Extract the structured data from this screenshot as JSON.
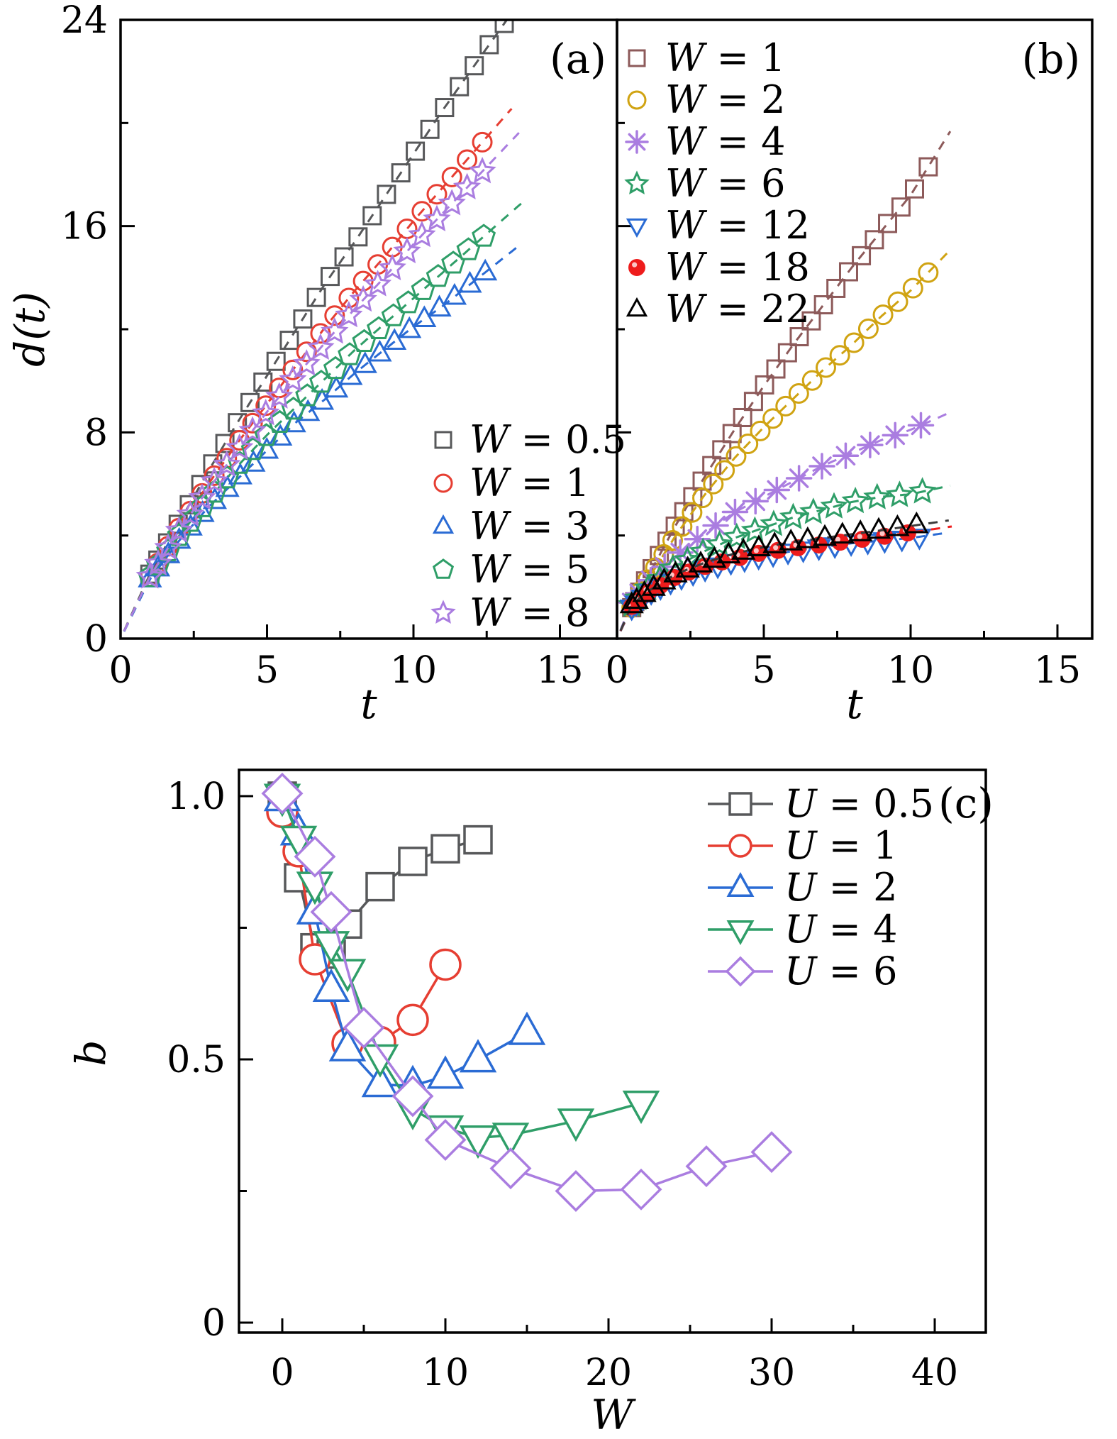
{
  "figure_title": "",
  "chart_data": [
    {
      "id": "a",
      "type": "scatter",
      "panel_label": "(a)",
      "xlabel": "t",
      "ylabel": "d(t)",
      "xlim": [
        0,
        16.9
      ],
      "ylim": [
        0,
        24
      ],
      "xticks_major": [
        0,
        5,
        10,
        15
      ],
      "xtick_labels": [
        "0",
        "5",
        "10",
        "15"
      ],
      "xticks_minor": [
        2.5,
        7.5,
        12.5
      ],
      "yticks_major": [
        0,
        8,
        16,
        24
      ],
      "ytick_labels": [
        "0",
        "8",
        "16",
        "24"
      ],
      "yticks_minor": [
        4,
        12,
        20
      ],
      "grid": false,
      "legend_position": "lower-right-inside",
      "series": [
        {
          "label": "W = 0.5",
          "color": "#57585a",
          "marker": "square",
          "anchors": [
            [
              1,
              2.5
            ],
            [
              2,
              4.5
            ],
            [
              3,
              6.5
            ],
            [
              4,
              8.4
            ],
            [
              5,
              10.2
            ],
            [
              6,
              12.0
            ],
            [
              7,
              13.8
            ],
            [
              8,
              15.4
            ],
            [
              9,
              17.1
            ],
            [
              10,
              18.8
            ],
            [
              11,
              20.5
            ],
            [
              12,
              22.1
            ],
            [
              13,
              23.7
            ]
          ],
          "markers": {
            "t0": 1.0,
            "t1": 13.1,
            "n": 28,
            "exp": 1.15
          },
          "dash_end": 13.6
        },
        {
          "label": "W = 1",
          "color": "#e63e32",
          "marker": "circle",
          "anchors": [
            [
              1,
              2.4
            ],
            [
              2,
              4.3
            ],
            [
              3,
              6.0
            ],
            [
              4,
              7.6
            ],
            [
              5,
              9.1
            ],
            [
              6,
              10.6
            ],
            [
              7,
              12.1
            ],
            [
              8,
              13.5
            ],
            [
              9,
              14.8
            ],
            [
              10,
              16.2
            ],
            [
              11,
              17.5
            ],
            [
              12,
              18.8
            ]
          ],
          "markers": {
            "t0": 1.0,
            "t1": 12.35,
            "n": 26,
            "exp": 1.15
          },
          "dash_end": 13.35
        },
        {
          "label": "W = 3",
          "color": "#2a6bd4",
          "marker": "triangle-up",
          "anchors": [
            [
              1,
              2.3
            ],
            [
              2,
              3.8
            ],
            [
              3,
              5.1
            ],
            [
              4,
              6.2
            ],
            [
              5,
              7.3
            ],
            [
              6,
              8.4
            ],
            [
              7,
              9.3
            ],
            [
              8,
              10.3
            ],
            [
              9,
              11.2
            ],
            [
              10,
              12.1
            ],
            [
              11,
              12.9
            ],
            [
              12,
              13.8
            ]
          ],
          "markers": {
            "t0": 1.0,
            "t1": 12.45,
            "n": 26,
            "exp": 1.15
          },
          "dash_end": 13.7
        },
        {
          "label": "W = 5",
          "color": "#2f9e68",
          "marker": "pentagon",
          "anchors": [
            [
              1,
              2.4
            ],
            [
              2,
              4.0
            ],
            [
              3,
              5.4
            ],
            [
              4,
              6.7
            ],
            [
              5,
              7.9
            ],
            [
              6,
              9.0
            ],
            [
              7,
              10.1
            ],
            [
              8,
              11.2
            ],
            [
              9,
              12.2
            ],
            [
              10,
              13.2
            ],
            [
              11,
              14.2
            ],
            [
              12,
              15.2
            ]
          ],
          "markers": {
            "t0": 1.0,
            "t1": 12.4,
            "n": 26,
            "exp": 1.15
          },
          "dash_end": 13.8
        },
        {
          "label": "W = 8",
          "color": "#aa7de0",
          "marker": "star",
          "anchors": [
            [
              1,
              2.4
            ],
            [
              2,
              4.2
            ],
            [
              3,
              5.8
            ],
            [
              4,
              7.3
            ],
            [
              5,
              8.8
            ],
            [
              6,
              10.2
            ],
            [
              7,
              11.5
            ],
            [
              8,
              12.8
            ],
            [
              9,
              14.0
            ],
            [
              10,
              15.3
            ],
            [
              11,
              16.5
            ],
            [
              12,
              17.7
            ]
          ],
          "markers": {
            "t0": 1.0,
            "t1": 12.35,
            "n": 26,
            "exp": 1.15
          },
          "dash_end": 13.6
        }
      ]
    },
    {
      "id": "b",
      "type": "scatter",
      "panel_label": "(b)",
      "xlabel": "t",
      "ylabel": "",
      "xlim": [
        0,
        16.2
      ],
      "ylim": [
        0,
        24
      ],
      "xticks_major": [
        0,
        5,
        10,
        15
      ],
      "xtick_labels": [
        "0",
        "5",
        "10",
        "15"
      ],
      "xticks_minor": [
        2.5,
        7.5,
        12.5
      ],
      "yticks_major": [
        0,
        8,
        16,
        24
      ],
      "ytick_labels": [],
      "yticks_minor": [
        4,
        12,
        20
      ],
      "grid": false,
      "legend_position": "upper-left-inside",
      "series": [
        {
          "label": "W = 1",
          "color": "#8d5a5a",
          "marker": "square",
          "anchors": [
            [
              0.5,
              1.2
            ],
            [
              1,
              2.3
            ],
            [
              2,
              4.4
            ],
            [
              3,
              6.3
            ],
            [
              4,
              8.1
            ],
            [
              5,
              9.8
            ],
            [
              6,
              11.4
            ],
            [
              7,
              12.9
            ],
            [
              8,
              14.4
            ],
            [
              9,
              15.8
            ],
            [
              10,
              17.2
            ],
            [
              10.6,
              18.3
            ]
          ],
          "markers": {
            "t0": 0.5,
            "t1": 10.6,
            "n": 30,
            "exp": 1.35
          },
          "dash_end": 11.35
        },
        {
          "label": "W = 2",
          "color": "#d0a312",
          "marker": "circle",
          "anchors": [
            [
              0.5,
              1.2
            ],
            [
              1,
              2.2
            ],
            [
              2,
              4.0
            ],
            [
              3,
              5.6
            ],
            [
              4,
              7.0
            ],
            [
              5,
              8.2
            ],
            [
              6,
              9.3
            ],
            [
              7,
              10.4
            ],
            [
              8,
              11.4
            ],
            [
              9,
              12.5
            ],
            [
              10,
              13.5
            ],
            [
              10.6,
              14.2
            ]
          ],
          "markers": {
            "t0": 0.5,
            "t1": 10.6,
            "n": 27,
            "exp": 1.35
          },
          "dash_end": 11.35
        },
        {
          "label": "W = 4",
          "color": "#aa7de0",
          "marker": "asterisk",
          "anchors": [
            [
              0.5,
              1.4
            ],
            [
              1,
              2.1
            ],
            [
              2,
              3.2
            ],
            [
              3,
              4.1
            ],
            [
              4,
              4.9
            ],
            [
              5,
              5.5
            ],
            [
              6,
              6.1
            ],
            [
              7,
              6.7
            ],
            [
              8,
              7.2
            ],
            [
              9,
              7.7
            ],
            [
              10,
              8.1
            ],
            [
              10.4,
              8.3
            ]
          ],
          "markers": {
            "t0": 0.5,
            "t1": 10.35,
            "n": 16,
            "exp": 1.35
          },
          "dash_end": 11.45
        },
        {
          "label": "W = 6",
          "color": "#2f9e68",
          "marker": "star",
          "anchors": [
            [
              0.5,
              1.3
            ],
            [
              1,
              1.9
            ],
            [
              2,
              2.8
            ],
            [
              3,
              3.4
            ],
            [
              4,
              3.9
            ],
            [
              5,
              4.3
            ],
            [
              6,
              4.7
            ],
            [
              7,
              5.0
            ],
            [
              8,
              5.3
            ],
            [
              9,
              5.5
            ],
            [
              10,
              5.6
            ],
            [
              10.4,
              5.7
            ]
          ],
          "markers": {
            "t0": 0.5,
            "t1": 10.4,
            "n": 18,
            "exp": 1.35
          },
          "dash_end": 11.35
        },
        {
          "label": "W = 12",
          "color": "#2a6bd4",
          "marker": "triangle-down",
          "anchors": [
            [
              0.5,
              1.2
            ],
            [
              1,
              1.7
            ],
            [
              2,
              2.3
            ],
            [
              3,
              2.7
            ],
            [
              4,
              3.0
            ],
            [
              5,
              3.2
            ],
            [
              6,
              3.4
            ],
            [
              7,
              3.55
            ],
            [
              8,
              3.7
            ],
            [
              9,
              3.8
            ],
            [
              10,
              3.9
            ],
            [
              10.3,
              3.95
            ]
          ],
          "markers": {
            "t0": 0.5,
            "t1": 10.3,
            "n": 23,
            "exp": 1.35
          },
          "dash_end": 11.3
        },
        {
          "label": "W = 18",
          "color": "#ee1c1c",
          "marker": "filled-circle",
          "anchors": [
            [
              0.5,
              1.25
            ],
            [
              1,
              1.75
            ],
            [
              2,
              2.4
            ],
            [
              3,
              2.8
            ],
            [
              4,
              3.1
            ],
            [
              5,
              3.35
            ],
            [
              6,
              3.5
            ],
            [
              7,
              3.65
            ],
            [
              8,
              3.8
            ],
            [
              9,
              3.95
            ],
            [
              9.9,
              4.1
            ]
          ],
          "markers": {
            "t0": 0.5,
            "t1": 9.9,
            "n": 17,
            "exp": 1.35
          },
          "dash_end": 11.4
        },
        {
          "label": "W = 22",
          "color": "#000000",
          "dash_color": "#3c3c3c",
          "marker": "triangle-up",
          "anchors": [
            [
              0.5,
              1.3
            ],
            [
              1,
              1.8
            ],
            [
              2,
              2.5
            ],
            [
              3,
              2.95
            ],
            [
              4,
              3.3
            ],
            [
              5,
              3.55
            ],
            [
              6,
              3.75
            ],
            [
              7,
              3.9
            ],
            [
              8,
              4.05
            ],
            [
              9,
              4.2
            ],
            [
              10.2,
              4.4
            ]
          ],
          "markers": {
            "t0": 0.5,
            "t1": 10.2,
            "n": 21,
            "exp": 1.35
          },
          "dash_end": 11.3
        }
      ]
    },
    {
      "id": "c",
      "type": "line",
      "panel_label": "(c)",
      "xlabel": "W",
      "ylabel": "b",
      "xlim": [
        -2.6,
        43.3
      ],
      "ylim": [
        -0.02,
        1.06
      ],
      "xticks_major": [
        0,
        10,
        20,
        30,
        40
      ],
      "xtick_labels": [
        "0",
        "10",
        "20",
        "30",
        "40"
      ],
      "xticks_minor": [
        5,
        15,
        25,
        35
      ],
      "yticks_major": [
        0,
        0.5,
        1.0
      ],
      "ytick_labels": [
        "0",
        "0.5",
        "1.0"
      ],
      "yticks_minor": [
        0.25,
        0.75
      ],
      "grid": false,
      "legend_position": "upper-right-inside",
      "series": [
        {
          "label": "U = 0.5",
          "color": "#57585a",
          "marker": "square",
          "points": [
            [
              0,
              1.0
            ],
            [
              1,
              0.845
            ],
            [
              2,
              0.712
            ],
            [
              3,
              0.7
            ],
            [
              4,
              0.757
            ],
            [
              6,
              0.828
            ],
            [
              8,
              0.876
            ],
            [
              10,
              0.9
            ],
            [
              12,
              0.917
            ]
          ]
        },
        {
          "label": "U = 1",
          "color": "#e63e32",
          "marker": "circle",
          "points": [
            [
              0,
              0.97
            ],
            [
              1,
              0.895
            ],
            [
              2,
              0.69
            ],
            [
              4,
              0.53
            ],
            [
              6,
              0.533
            ],
            [
              8,
              0.575
            ],
            [
              10,
              0.68
            ]
          ]
        },
        {
          "label": "U = 2",
          "color": "#2a6bd4",
          "marker": "triangle-up",
          "points": [
            [
              0,
              0.995
            ],
            [
              1,
              0.93
            ],
            [
              2,
              0.78
            ],
            [
              3,
              0.633
            ],
            [
              4,
              0.52
            ],
            [
              6,
              0.452
            ],
            [
              8,
              0.45
            ],
            [
              10,
              0.468
            ],
            [
              12,
              0.499
            ],
            [
              15,
              0.551
            ]
          ]
        },
        {
          "label": "U = 4",
          "color": "#2f9e68",
          "marker": "triangle-down",
          "points": [
            [
              0,
              1.0
            ],
            [
              1,
              0.92
            ],
            [
              2,
              0.833
            ],
            [
              3,
              0.72
            ],
            [
              4,
              0.667
            ],
            [
              6,
              0.505
            ],
            [
              8,
              0.405
            ],
            [
              10,
              0.37
            ],
            [
              12,
              0.351
            ],
            [
              14,
              0.356
            ],
            [
              18,
              0.383
            ],
            [
              22,
              0.417
            ]
          ]
        },
        {
          "label": "U = 6",
          "color": "#aa7de0",
          "marker": "diamond",
          "points": [
            [
              0,
              1.005
            ],
            [
              2,
              0.885
            ],
            [
              3,
              0.78
            ],
            [
              5,
              0.56
            ],
            [
              8,
              0.43
            ],
            [
              10,
              0.347
            ],
            [
              14,
              0.293
            ],
            [
              18,
              0.25
            ],
            [
              22,
              0.253
            ],
            [
              26,
              0.297
            ],
            [
              30,
              0.324
            ]
          ]
        }
      ]
    }
  ],
  "style": {
    "background": "#ffffff",
    "axis_color": "#000000",
    "dash_pattern": "13 11"
  }
}
